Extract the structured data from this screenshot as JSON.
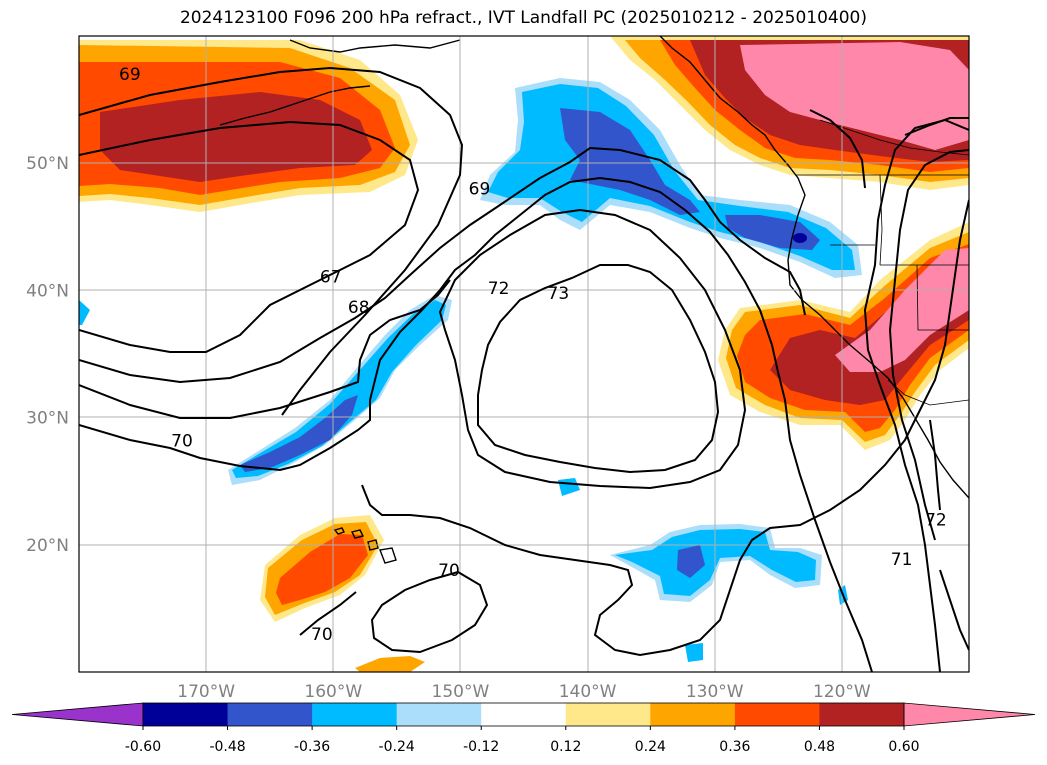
{
  "title": "2024123100 F096 200 hPa refract., IVT Landfall PC (2025010212 - 2025010400)",
  "map": {
    "lon_range": [
      -180,
      -110
    ],
    "lat_range": [
      10,
      60
    ],
    "lon_ticks": [
      {
        "lon": -170,
        "label": "170°W"
      },
      {
        "lon": -160,
        "label": "160°W"
      },
      {
        "lon": -150,
        "label": "150°W"
      },
      {
        "lon": -140,
        "label": "140°W"
      },
      {
        "lon": -130,
        "label": "130°W"
      },
      {
        "lon": -120,
        "label": "120°W"
      }
    ],
    "lat_ticks": [
      {
        "lat": 50,
        "label": "50°N"
      },
      {
        "lat": 40,
        "label": "40°N"
      },
      {
        "lat": 30,
        "label": "30°N"
      },
      {
        "lat": 20,
        "label": "20°N"
      }
    ],
    "grid": true,
    "contour_labels": [
      {
        "text": "69",
        "lon": -176,
        "lat": 57
      },
      {
        "text": "69",
        "lon": -148.5,
        "lat": 48
      },
      {
        "text": "67",
        "lon": -160.2,
        "lat": 41.1
      },
      {
        "text": "68",
        "lon": -158,
        "lat": 38.7
      },
      {
        "text": "72",
        "lon": -147,
        "lat": 40.2
      },
      {
        "text": "73",
        "lon": -142.3,
        "lat": 39.8
      },
      {
        "text": "70",
        "lon": -171.9,
        "lat": 28.2
      },
      {
        "text": "70",
        "lon": -150.9,
        "lat": 18
      },
      {
        "text": "70",
        "lon": -160.9,
        "lat": 13
      },
      {
        "text": "72",
        "lon": -112.6,
        "lat": 22
      },
      {
        "text": "71",
        "lon": -115.3,
        "lat": 18.9
      }
    ]
  },
  "colorbar": {
    "ticks": [
      "-0.60",
      "-0.48",
      "-0.36",
      "-0.24",
      "-0.12",
      "0.12",
      "0.24",
      "0.36",
      "0.48",
      "0.60"
    ],
    "colors": [
      "#9933cc",
      "#000099",
      "#3355cc",
      "#00bbff",
      "#aadefa",
      "#ffffff",
      "#ffe88a",
      "#ffa500",
      "#ff4a00",
      "#b22222",
      "#ff88aa"
    ]
  }
}
